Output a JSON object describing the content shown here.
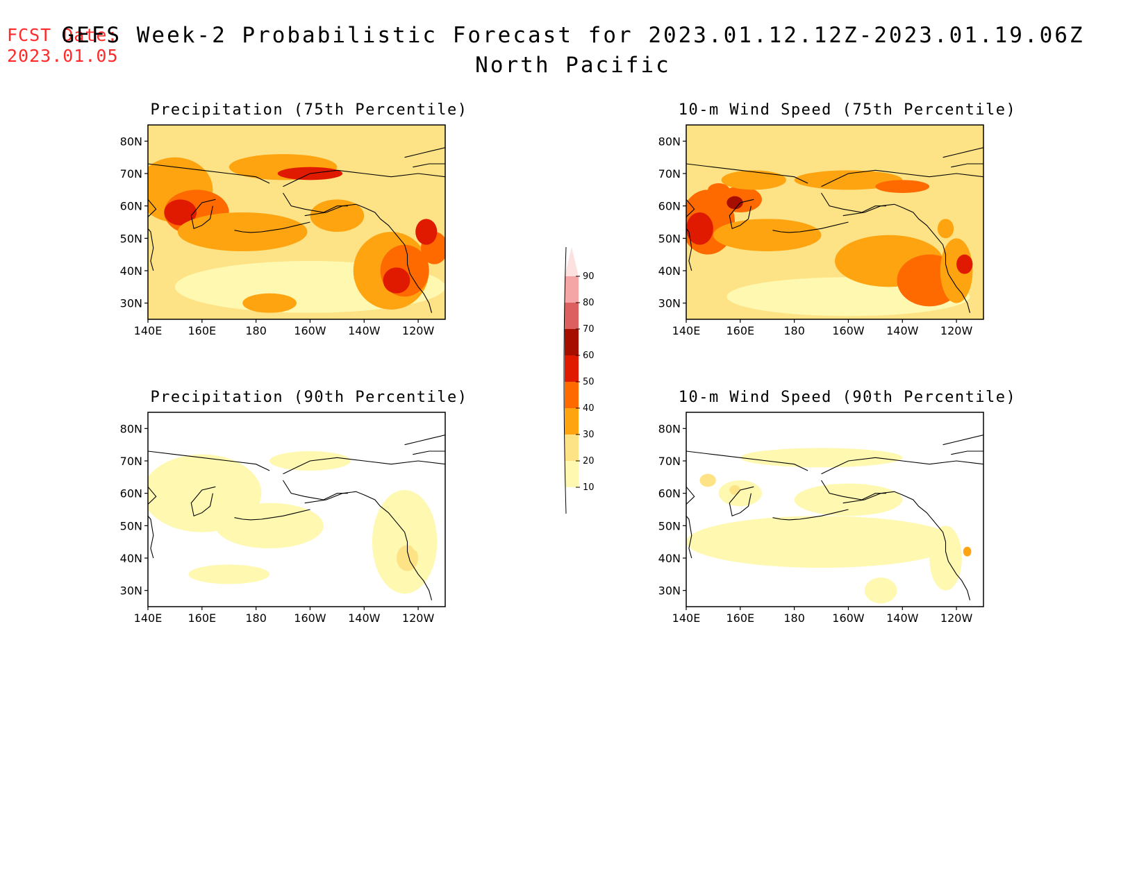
{
  "header": {
    "fcst_date_label": "FCST Date:",
    "fcst_date_value": "2023.01.05",
    "title_line1": "GEFS Week-2 Probabilistic Forecast for 2023.01.12.12Z-2023.01.19.06Z",
    "title_line2": "North Pacific"
  },
  "map": {
    "region": "North Pacific",
    "lon_ticks": [
      "140E",
      "160E",
      "180",
      "160W",
      "140W",
      "120W"
    ],
    "lat_ticks": [
      "80N",
      "70N",
      "60N",
      "50N",
      "40N",
      "30N"
    ],
    "lon_range": [
      140,
      250
    ],
    "lat_range": [
      25,
      85
    ]
  },
  "panels": [
    {
      "id": "precip75",
      "title": "Precipitation (75th Percentile)",
      "intensity": "high"
    },
    {
      "id": "wind75",
      "title": "10-m Wind Speed (75th Percentile)",
      "intensity": "high"
    },
    {
      "id": "precip90",
      "title": "Precipitation (90th Percentile)",
      "intensity": "low"
    },
    {
      "id": "wind90",
      "title": "10-m Wind Speed (90th Percentile)",
      "intensity": "low"
    }
  ],
  "colorbar": {
    "labels": [
      "10",
      "20",
      "30",
      "40",
      "50",
      "60",
      "70",
      "80",
      "90"
    ],
    "colors": [
      "#fff8b0",
      "#fde385",
      "#ffa411",
      "#ff6a00",
      "#e01a00",
      "#a60f00",
      "#dd6060",
      "#f4a6a6",
      "#fde0e0"
    ]
  }
}
